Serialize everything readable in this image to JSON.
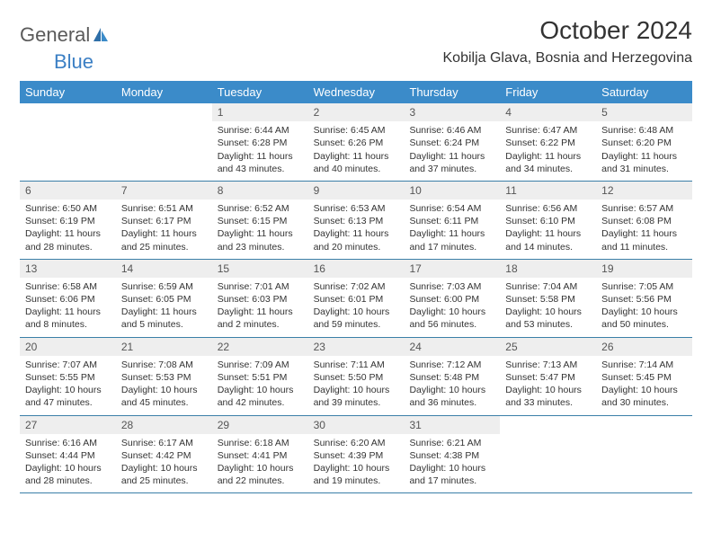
{
  "logo": {
    "word1": "General",
    "word2": "Blue"
  },
  "title": "October 2024",
  "location": "Kobilja Glava, Bosnia and Herzegovina",
  "colors": {
    "header_bg": "#3b8bc9",
    "header_text": "#ffffff",
    "daynum_bg": "#eeeeee",
    "row_border": "#3b7fa8",
    "logo_gray": "#5a5a5a",
    "logo_blue": "#3b7fc4"
  },
  "day_names": [
    "Sunday",
    "Monday",
    "Tuesday",
    "Wednesday",
    "Thursday",
    "Friday",
    "Saturday"
  ],
  "weeks": [
    [
      {
        "n": "",
        "sr": "",
        "ss": "",
        "dl": ""
      },
      {
        "n": "",
        "sr": "",
        "ss": "",
        "dl": ""
      },
      {
        "n": "1",
        "sr": "Sunrise: 6:44 AM",
        "ss": "Sunset: 6:28 PM",
        "dl": "Daylight: 11 hours and 43 minutes."
      },
      {
        "n": "2",
        "sr": "Sunrise: 6:45 AM",
        "ss": "Sunset: 6:26 PM",
        "dl": "Daylight: 11 hours and 40 minutes."
      },
      {
        "n": "3",
        "sr": "Sunrise: 6:46 AM",
        "ss": "Sunset: 6:24 PM",
        "dl": "Daylight: 11 hours and 37 minutes."
      },
      {
        "n": "4",
        "sr": "Sunrise: 6:47 AM",
        "ss": "Sunset: 6:22 PM",
        "dl": "Daylight: 11 hours and 34 minutes."
      },
      {
        "n": "5",
        "sr": "Sunrise: 6:48 AM",
        "ss": "Sunset: 6:20 PM",
        "dl": "Daylight: 11 hours and 31 minutes."
      }
    ],
    [
      {
        "n": "6",
        "sr": "Sunrise: 6:50 AM",
        "ss": "Sunset: 6:19 PM",
        "dl": "Daylight: 11 hours and 28 minutes."
      },
      {
        "n": "7",
        "sr": "Sunrise: 6:51 AM",
        "ss": "Sunset: 6:17 PM",
        "dl": "Daylight: 11 hours and 25 minutes."
      },
      {
        "n": "8",
        "sr": "Sunrise: 6:52 AM",
        "ss": "Sunset: 6:15 PM",
        "dl": "Daylight: 11 hours and 23 minutes."
      },
      {
        "n": "9",
        "sr": "Sunrise: 6:53 AM",
        "ss": "Sunset: 6:13 PM",
        "dl": "Daylight: 11 hours and 20 minutes."
      },
      {
        "n": "10",
        "sr": "Sunrise: 6:54 AM",
        "ss": "Sunset: 6:11 PM",
        "dl": "Daylight: 11 hours and 17 minutes."
      },
      {
        "n": "11",
        "sr": "Sunrise: 6:56 AM",
        "ss": "Sunset: 6:10 PM",
        "dl": "Daylight: 11 hours and 14 minutes."
      },
      {
        "n": "12",
        "sr": "Sunrise: 6:57 AM",
        "ss": "Sunset: 6:08 PM",
        "dl": "Daylight: 11 hours and 11 minutes."
      }
    ],
    [
      {
        "n": "13",
        "sr": "Sunrise: 6:58 AM",
        "ss": "Sunset: 6:06 PM",
        "dl": "Daylight: 11 hours and 8 minutes."
      },
      {
        "n": "14",
        "sr": "Sunrise: 6:59 AM",
        "ss": "Sunset: 6:05 PM",
        "dl": "Daylight: 11 hours and 5 minutes."
      },
      {
        "n": "15",
        "sr": "Sunrise: 7:01 AM",
        "ss": "Sunset: 6:03 PM",
        "dl": "Daylight: 11 hours and 2 minutes."
      },
      {
        "n": "16",
        "sr": "Sunrise: 7:02 AM",
        "ss": "Sunset: 6:01 PM",
        "dl": "Daylight: 10 hours and 59 minutes."
      },
      {
        "n": "17",
        "sr": "Sunrise: 7:03 AM",
        "ss": "Sunset: 6:00 PM",
        "dl": "Daylight: 10 hours and 56 minutes."
      },
      {
        "n": "18",
        "sr": "Sunrise: 7:04 AM",
        "ss": "Sunset: 5:58 PM",
        "dl": "Daylight: 10 hours and 53 minutes."
      },
      {
        "n": "19",
        "sr": "Sunrise: 7:05 AM",
        "ss": "Sunset: 5:56 PM",
        "dl": "Daylight: 10 hours and 50 minutes."
      }
    ],
    [
      {
        "n": "20",
        "sr": "Sunrise: 7:07 AM",
        "ss": "Sunset: 5:55 PM",
        "dl": "Daylight: 10 hours and 47 minutes."
      },
      {
        "n": "21",
        "sr": "Sunrise: 7:08 AM",
        "ss": "Sunset: 5:53 PM",
        "dl": "Daylight: 10 hours and 45 minutes."
      },
      {
        "n": "22",
        "sr": "Sunrise: 7:09 AM",
        "ss": "Sunset: 5:51 PM",
        "dl": "Daylight: 10 hours and 42 minutes."
      },
      {
        "n": "23",
        "sr": "Sunrise: 7:11 AM",
        "ss": "Sunset: 5:50 PM",
        "dl": "Daylight: 10 hours and 39 minutes."
      },
      {
        "n": "24",
        "sr": "Sunrise: 7:12 AM",
        "ss": "Sunset: 5:48 PM",
        "dl": "Daylight: 10 hours and 36 minutes."
      },
      {
        "n": "25",
        "sr": "Sunrise: 7:13 AM",
        "ss": "Sunset: 5:47 PM",
        "dl": "Daylight: 10 hours and 33 minutes."
      },
      {
        "n": "26",
        "sr": "Sunrise: 7:14 AM",
        "ss": "Sunset: 5:45 PM",
        "dl": "Daylight: 10 hours and 30 minutes."
      }
    ],
    [
      {
        "n": "27",
        "sr": "Sunrise: 6:16 AM",
        "ss": "Sunset: 4:44 PM",
        "dl": "Daylight: 10 hours and 28 minutes."
      },
      {
        "n": "28",
        "sr": "Sunrise: 6:17 AM",
        "ss": "Sunset: 4:42 PM",
        "dl": "Daylight: 10 hours and 25 minutes."
      },
      {
        "n": "29",
        "sr": "Sunrise: 6:18 AM",
        "ss": "Sunset: 4:41 PM",
        "dl": "Daylight: 10 hours and 22 minutes."
      },
      {
        "n": "30",
        "sr": "Sunrise: 6:20 AM",
        "ss": "Sunset: 4:39 PM",
        "dl": "Daylight: 10 hours and 19 minutes."
      },
      {
        "n": "31",
        "sr": "Sunrise: 6:21 AM",
        "ss": "Sunset: 4:38 PM",
        "dl": "Daylight: 10 hours and 17 minutes."
      },
      {
        "n": "",
        "sr": "",
        "ss": "",
        "dl": ""
      },
      {
        "n": "",
        "sr": "",
        "ss": "",
        "dl": ""
      }
    ]
  ]
}
